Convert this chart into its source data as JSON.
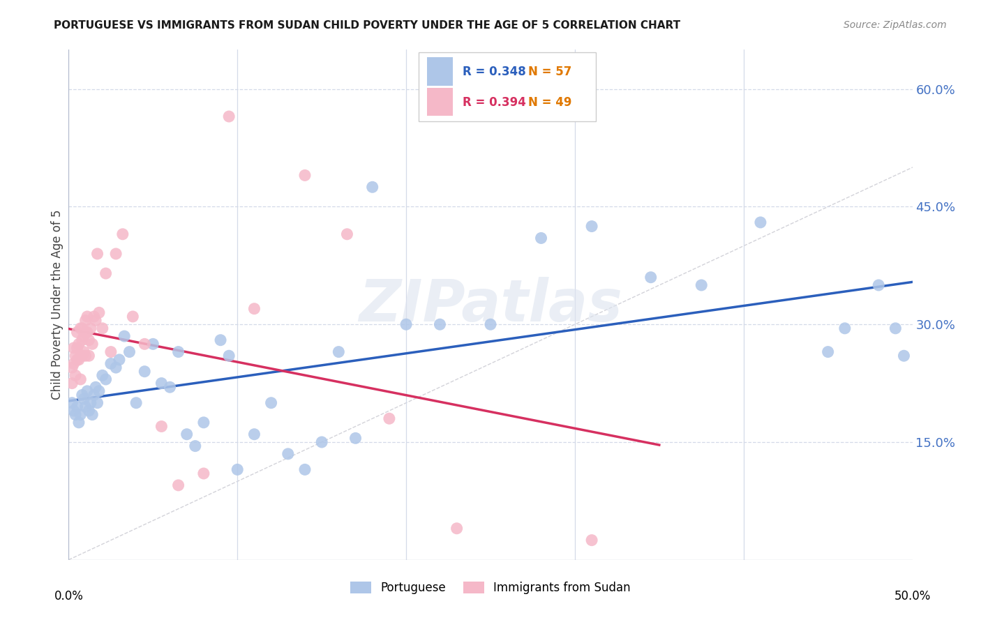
{
  "title": "PORTUGUESE VS IMMIGRANTS FROM SUDAN CHILD POVERTY UNDER THE AGE OF 5 CORRELATION CHART",
  "source": "Source: ZipAtlas.com",
  "ylabel": "Child Poverty Under the Age of 5",
  "xlim": [
    0.0,
    0.5
  ],
  "ylim": [
    0.0,
    0.65
  ],
  "yticks": [
    0.15,
    0.3,
    0.45,
    0.6
  ],
  "ytick_labels": [
    "15.0%",
    "30.0%",
    "45.0%",
    "60.0%"
  ],
  "xticks": [
    0.0,
    0.1,
    0.2,
    0.3,
    0.4,
    0.5
  ],
  "xtick_labels": [
    "0.0%",
    "",
    "",
    "",
    "",
    "50.0%"
  ],
  "watermark": "ZIPatlas",
  "legend_R_port": "0.348",
  "legend_N_port": "57",
  "legend_R_sud": "0.394",
  "legend_N_sud": "49",
  "portuguese_color": "#aec6e8",
  "portuguese_line_color": "#2b5fbc",
  "sudan_color": "#f5b8c8",
  "sudan_line_color": "#d63060",
  "ref_line_color": "#c8c8d0",
  "portuguese_x": [
    0.002,
    0.003,
    0.004,
    0.005,
    0.006,
    0.007,
    0.008,
    0.009,
    0.01,
    0.011,
    0.012,
    0.013,
    0.014,
    0.015,
    0.016,
    0.017,
    0.018,
    0.02,
    0.022,
    0.025,
    0.028,
    0.03,
    0.033,
    0.036,
    0.04,
    0.045,
    0.05,
    0.055,
    0.06,
    0.065,
    0.07,
    0.075,
    0.08,
    0.09,
    0.095,
    0.1,
    0.11,
    0.12,
    0.13,
    0.14,
    0.15,
    0.16,
    0.17,
    0.18,
    0.2,
    0.22,
    0.25,
    0.28,
    0.31,
    0.345,
    0.375,
    0.41,
    0.45,
    0.46,
    0.48,
    0.49,
    0.495
  ],
  "portuguese_y": [
    0.2,
    0.19,
    0.185,
    0.195,
    0.175,
    0.185,
    0.21,
    0.205,
    0.195,
    0.215,
    0.19,
    0.2,
    0.185,
    0.21,
    0.22,
    0.2,
    0.215,
    0.235,
    0.23,
    0.25,
    0.245,
    0.255,
    0.285,
    0.265,
    0.2,
    0.24,
    0.275,
    0.225,
    0.22,
    0.265,
    0.16,
    0.145,
    0.175,
    0.28,
    0.26,
    0.115,
    0.16,
    0.2,
    0.135,
    0.115,
    0.15,
    0.265,
    0.155,
    0.475,
    0.3,
    0.3,
    0.3,
    0.41,
    0.425,
    0.36,
    0.35,
    0.43,
    0.265,
    0.295,
    0.35,
    0.295,
    0.26
  ],
  "sudan_x": [
    0.002,
    0.002,
    0.003,
    0.003,
    0.004,
    0.004,
    0.005,
    0.005,
    0.005,
    0.006,
    0.006,
    0.007,
    0.007,
    0.007,
    0.008,
    0.008,
    0.008,
    0.009,
    0.009,
    0.01,
    0.01,
    0.01,
    0.011,
    0.011,
    0.012,
    0.012,
    0.013,
    0.014,
    0.015,
    0.016,
    0.017,
    0.018,
    0.02,
    0.022,
    0.025,
    0.028,
    0.032,
    0.038,
    0.045,
    0.055,
    0.065,
    0.08,
    0.095,
    0.11,
    0.14,
    0.165,
    0.19,
    0.23,
    0.31
  ],
  "sudan_y": [
    0.245,
    0.225,
    0.25,
    0.27,
    0.26,
    0.235,
    0.29,
    0.27,
    0.255,
    0.275,
    0.255,
    0.295,
    0.26,
    0.23,
    0.295,
    0.28,
    0.26,
    0.285,
    0.265,
    0.305,
    0.26,
    0.29,
    0.29,
    0.31,
    0.28,
    0.26,
    0.295,
    0.275,
    0.31,
    0.305,
    0.39,
    0.315,
    0.295,
    0.365,
    0.265,
    0.39,
    0.415,
    0.31,
    0.275,
    0.17,
    0.095,
    0.11,
    0.565,
    0.32,
    0.49,
    0.415,
    0.18,
    0.04,
    0.025
  ]
}
